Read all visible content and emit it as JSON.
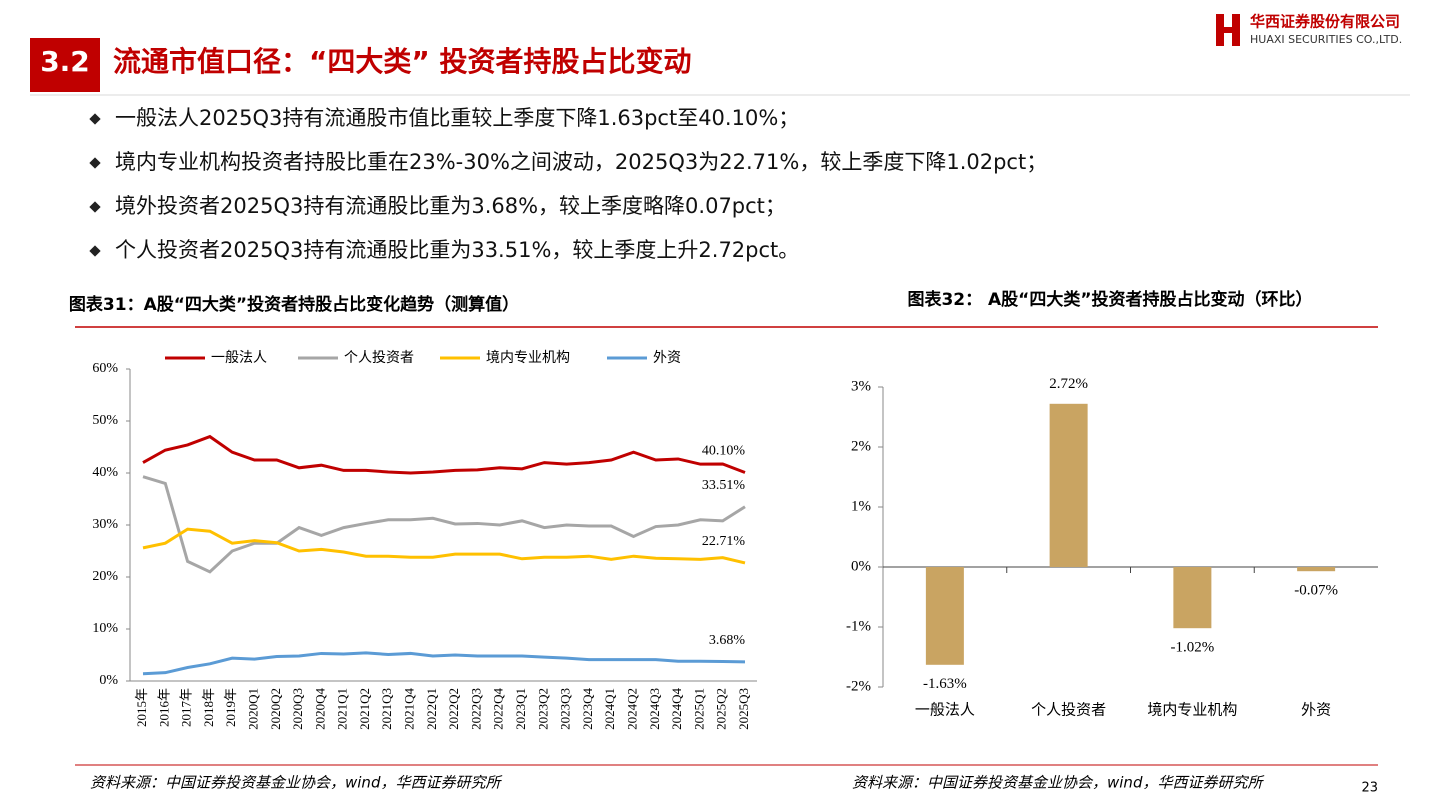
{
  "logo": {
    "name": "华西证券股份有限公司",
    "english": "HUAXI SECURITIES CO.,LTD."
  },
  "header": {
    "number": "3.2",
    "title": "流通市值口径：“四大类” 投资者持股占比变动"
  },
  "bullets": [
    "一般法人2025Q3持有流通股市值比重较上季度下降1.63pct至40.10%；",
    "境内专业机构投资者持股比重在23%-30%之间波动，2025Q3为22.71%，较上季度下降1.02pct；",
    "境外投资者2025Q3持有流通股比重为3.68%，较上季度略降0.07pct；",
    "个人投资者2025Q3持有流通股比重为33.51%，较上季度上升2.72pct。"
  ],
  "chart_data": [
    {
      "type": "line",
      "title": "图表31：A股“四大类”投资者持股占比变化趋势（测算值）",
      "categories": [
        "2015年",
        "2016年",
        "2017年",
        "2018年",
        "2019年",
        "2020Q1",
        "2020Q2",
        "2020Q3",
        "2020Q4",
        "2021Q1",
        "2021Q2",
        "2021Q3",
        "2021Q4",
        "2022Q1",
        "2022Q2",
        "2022Q3",
        "2022Q4",
        "2023Q1",
        "2023Q2",
        "2023Q3",
        "2023Q4",
        "2024Q1",
        "2024Q2",
        "2024Q3",
        "2024Q4",
        "2025Q1",
        "2025Q2",
        "2025Q3"
      ],
      "series": [
        {
          "name": "一般法人",
          "color": "#c00000",
          "values": [
            42,
            44.4,
            45.4,
            47,
            44,
            42.5,
            42.5,
            41,
            41.5,
            40.5,
            40.5,
            40.2,
            40,
            40.2,
            40.5,
            40.6,
            41,
            40.8,
            42,
            41.7,
            42,
            42.5,
            44,
            42.5,
            42.7,
            41.7,
            41.73,
            40.1
          ],
          "value_labels": [
            null,
            null,
            null,
            null,
            null,
            null,
            null,
            null,
            null,
            null,
            null,
            null,
            null,
            null,
            null,
            null,
            null,
            null,
            null,
            null,
            null,
            null,
            null,
            null,
            null,
            null,
            null,
            "40.10%"
          ]
        },
        {
          "name": "个人投资者",
          "color": "#a6a6a6",
          "values": [
            39.3,
            38,
            23,
            21,
            25,
            26.5,
            26.5,
            29.5,
            28,
            29.5,
            30.3,
            31,
            31,
            31.3,
            30.2,
            30.3,
            30,
            30.8,
            29.5,
            30,
            29.8,
            29.8,
            27.8,
            29.7,
            30,
            31,
            30.79,
            33.51
          ],
          "value_labels": [
            null,
            null,
            null,
            null,
            null,
            null,
            null,
            null,
            null,
            null,
            null,
            null,
            null,
            null,
            null,
            null,
            null,
            null,
            null,
            null,
            null,
            null,
            null,
            null,
            null,
            null,
            null,
            "33.51%"
          ]
        },
        {
          "name": "境内专业机构",
          "color": "#ffc000",
          "values": [
            25.6,
            26.5,
            29.2,
            28.8,
            26.5,
            27,
            26.6,
            25,
            25.3,
            24.8,
            24,
            24,
            23.8,
            23.8,
            24.4,
            24.4,
            24.4,
            23.5,
            23.8,
            23.8,
            24,
            23.4,
            24,
            23.6,
            23.5,
            23.4,
            23.73,
            22.71
          ],
          "value_labels": [
            null,
            null,
            null,
            null,
            null,
            null,
            null,
            null,
            null,
            null,
            null,
            null,
            null,
            null,
            null,
            null,
            null,
            null,
            null,
            null,
            null,
            null,
            null,
            null,
            null,
            null,
            null,
            "22.71%"
          ]
        },
        {
          "name": "外资",
          "color": "#5b9bd5",
          "values": [
            1.4,
            1.6,
            2.6,
            3.3,
            4.4,
            4.2,
            4.7,
            4.8,
            5.3,
            5.2,
            5.4,
            5.1,
            5.3,
            4.8,
            5,
            4.8,
            4.8,
            4.8,
            4.6,
            4.4,
            4.1,
            4.1,
            4.1,
            4.1,
            3.8,
            3.8,
            3.75,
            3.68
          ],
          "value_labels": [
            null,
            null,
            null,
            null,
            null,
            null,
            null,
            null,
            null,
            null,
            null,
            null,
            null,
            null,
            null,
            null,
            null,
            null,
            null,
            null,
            null,
            null,
            null,
            null,
            null,
            null,
            null,
            "3.68%"
          ]
        }
      ],
      "ylim": [
        0,
        60
      ],
      "yticks": [
        {
          "value": 0,
          "label": "0%"
        },
        {
          "value": 10,
          "label": "10%"
        },
        {
          "value": 20,
          "label": "20%"
        },
        {
          "value": 30,
          "label": "30%"
        },
        {
          "value": 40,
          "label": "40%"
        },
        {
          "value": 50,
          "label": "50%"
        },
        {
          "value": 60,
          "label": "60%"
        }
      ],
      "legend": "top",
      "source": "资料来源：中国证券投资基金业协会，wind，华西证券研究所"
    },
    {
      "type": "bar",
      "title": "图表32： A股“四大类”投资者持股占比变动（环比）",
      "categories": [
        "一般法人",
        "个人投资者",
        "境内专业机构",
        "外资"
      ],
      "values": [
        -1.63,
        2.72,
        -1.02,
        -0.07
      ],
      "value_labels": [
        "-1.63%",
        "2.72%",
        "-1.02%",
        "-0.07%"
      ],
      "color": "#c9a462",
      "ylim": [
        -2,
        3
      ],
      "yticks": [
        {
          "value": -2,
          "label": "-2%"
        },
        {
          "value": -1,
          "label": "-1%"
        },
        {
          "value": 0,
          "label": "0%"
        },
        {
          "value": 1,
          "label": "1%"
        },
        {
          "value": 2,
          "label": "2%"
        },
        {
          "value": 3,
          "label": "3%"
        }
      ],
      "source": "资料来源：中国证券投资基金业协会，wind，华西证券研究所"
    }
  ],
  "page_number": "23"
}
